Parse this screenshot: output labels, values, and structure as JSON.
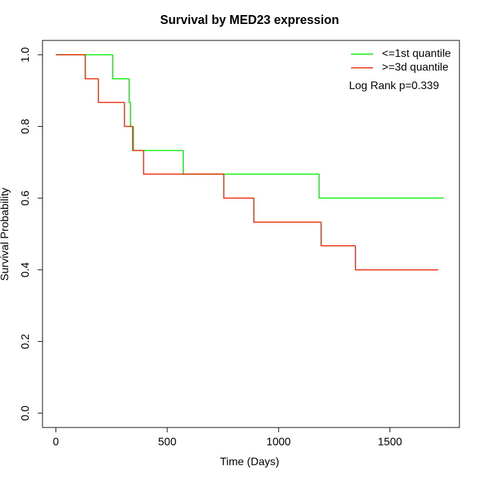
{
  "chart_data": {
    "type": "step",
    "title": "Survival by MED23 expression",
    "x_label": "Time (Days)",
    "y_label": "Survival Probability",
    "annotation": "Log Rank p=0.339",
    "xlim": [
      -60,
      1812
    ],
    "ylim": [
      -0.04,
      1.04
    ],
    "xticks": [
      0,
      500,
      1000,
      1500
    ],
    "yticks": [
      {
        "value": 0,
        "label": "0.0"
      },
      0.2,
      0.4,
      0.6,
      0.8,
      {
        "value": 1,
        "label": "1.0"
      }
    ],
    "legend": "top-right",
    "series": [
      {
        "name": "<=1st quantile",
        "color": "#00ee00",
        "x": [
          0,
          255,
          329,
          335,
          348,
          572,
          1182,
          1741
        ],
        "values": [
          1.0,
          0.933,
          0.867,
          0.8,
          0.733,
          0.667,
          0.6,
          0.6
        ]
      },
      {
        "name": ">=3d quantile",
        "color": "#ee2200",
        "x": [
          0,
          132,
          191,
          308,
          345,
          394,
          754,
          889,
          1191,
          1345,
          1717
        ],
        "values": [
          1.0,
          0.933,
          0.867,
          0.8,
          0.733,
          0.667,
          0.6,
          0.533,
          0.467,
          0.4,
          0.4
        ]
      }
    ]
  }
}
